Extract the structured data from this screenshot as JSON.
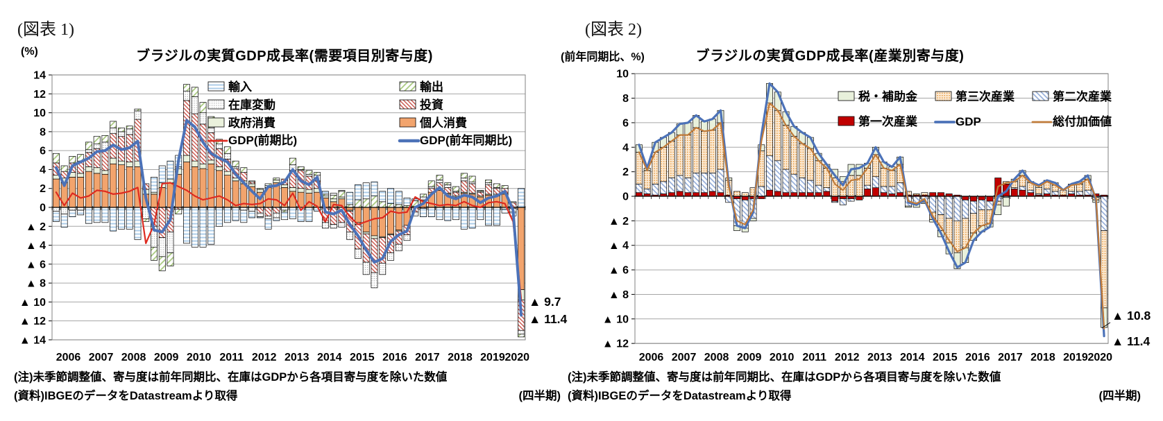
{
  "page": {
    "background": "#FFFFFF"
  },
  "panels": [
    {
      "fig_label": "(図表 1)",
      "unit_label": "(%)",
      "title": "ブラジルの実質GDP成長率(需要項目別寄与度)",
      "note1": "(注)未季節調整値、寄与度は前年同期比、在庫はGDPから各項目寄与度を除いた数値",
      "note2": "(資料)IBGEのデータをDatastreamより取得",
      "note2_right": "(四半期)"
    },
    {
      "fig_label": "(図表 2)",
      "unit_label": "(前年同期比、%)",
      "title": "ブラジルの実質GDP成長率(産業別寄与度)",
      "note1": "(注)未季節調整値、寄与度は前年同期比、在庫はGDPから各項目寄与度を除いた数値",
      "note2": "(資料)IBGEのデータをDatastreamより取得",
      "note2_right": "(四半期)"
    }
  ],
  "chart_data": [
    {
      "type": "bar",
      "subtype": "stacked-contribution-with-lines",
      "title": "ブラジルの実質GDP成長率(需要項目別寄与度)",
      "xlabel": "四半期",
      "ylabel": "%",
      "ylim": [
        -14,
        14
      ],
      "ytick_step": 2,
      "grid": true,
      "negative_tick_prefix": "▲ ",
      "years": [
        "2006",
        "2007",
        "2008",
        "2009",
        "2010",
        "2011",
        "2012",
        "2013",
        "2014",
        "2015",
        "2016",
        "2017",
        "2018",
        "2019",
        "2020"
      ],
      "n_quarters": 58,
      "x_range": "2006Q1-2020Q2",
      "patterns": {
        "hstripe": {
          "kind": "h",
          "fg": "#AECDE8",
          "bg": "#FFFFFF",
          "size": 5,
          "lw": 2
        },
        "dgreen": {
          "kind": "d",
          "fg": "#A8C97F",
          "bg": "#FFFFFF",
          "size": 6,
          "lw": 1.8,
          "angle": 45
        },
        "dots": {
          "kind": "dot",
          "fg": "#8C8C8C",
          "bg": "#FFFFFF",
          "size": 3.2,
          "r": 0.6
        },
        "rhatch": {
          "kind": "d",
          "fg": "#C5443B",
          "bg": "#FFFFFF",
          "size": 4,
          "lw": 1.3,
          "angle": -45
        }
      },
      "bar_series": [
        {
          "name": "個人消費",
          "fill": "solid",
          "color": "#F2A46D",
          "values": [
            3.0,
            2.6,
            3.2,
            3.2,
            3.8,
            3.6,
            3.5,
            4.6,
            4.5,
            4.3,
            4.3,
            1.4,
            1.4,
            2.1,
            2.6,
            3.5,
            4.8,
            4.3,
            4.1,
            4.6,
            3.9,
            3.4,
            2.8,
            2.5,
            2.2,
            1.6,
            2.1,
            2.6,
            2.1,
            1.7,
            1.6,
            1.5,
            1.6,
            1.0,
            0.6,
            0.9,
            -0.3,
            -1.6,
            -2.6,
            -3.0,
            -3.1,
            -2.8,
            -2.4,
            -1.9,
            0.1,
            0.7,
            1.6,
            1.8,
            1.4,
            1.1,
            1.5,
            1.4,
            1.1,
            1.3,
            1.2,
            1.4,
            -0.1,
            -8.7
          ]
        },
        {
          "name": "政府消費",
          "fill": "solid",
          "color": "#EAF1DC",
          "values": [
            0.4,
            0.5,
            0.5,
            0.4,
            0.5,
            0.6,
            0.4,
            0.6,
            0.4,
            0.5,
            0.6,
            0.5,
            0.2,
            0.5,
            0.4,
            0.6,
            0.7,
            0.6,
            0.5,
            0.4,
            0.4,
            0.4,
            0.3,
            0.3,
            0.3,
            0.3,
            0.2,
            0.3,
            0.3,
            0.4,
            0.4,
            0.4,
            0.4,
            0.2,
            0.3,
            0.2,
            -0.1,
            -0.2,
            -0.2,
            -0.3,
            -0.1,
            -0.1,
            -0.1,
            0.0,
            0.0,
            0.1,
            0.0,
            0.1,
            0.1,
            0.1,
            0.1,
            0.1,
            0.1,
            0.1,
            0.2,
            0.1,
            0.0,
            -1.1
          ]
        },
        {
          "name": "投資",
          "fill": "pattern",
          "pattern": "rhatch",
          "values": [
            1.3,
            0.7,
            1.0,
            1.3,
            1.5,
            2.0,
            2.2,
            2.6,
            2.6,
            2.9,
            4.4,
            0.6,
            -2.0,
            -3.2,
            -2.6,
            -0.2,
            5.8,
            5.0,
            4.2,
            2.9,
            1.9,
            1.3,
            1.0,
            0.9,
            0.2,
            -0.6,
            -0.9,
            -0.6,
            0.6,
            1.8,
            1.9,
            1.4,
            0.8,
            -1.6,
            -1.8,
            -1.6,
            -2.2,
            -2.6,
            -3.0,
            -3.6,
            -2.7,
            -1.9,
            -1.4,
            -1.0,
            -0.5,
            -0.1,
            0.4,
            0.7,
            0.6,
            0.4,
            1.2,
            1.0,
            0.4,
            1.0,
            0.6,
            0.5,
            0.5,
            -3.2
          ]
        },
        {
          "name": "在庫変動",
          "fill": "pattern",
          "pattern": "dots",
          "values": [
            -0.4,
            -0.7,
            -0.3,
            -0.3,
            0.3,
            0.5,
            0.8,
            0.6,
            0.5,
            0.6,
            0.9,
            -1.2,
            -2.2,
            -2.0,
            -2.2,
            0.2,
            1.0,
            1.8,
            1.2,
            0.5,
            0.5,
            0.6,
            0.2,
            -0.3,
            -0.4,
            -0.4,
            -0.3,
            -0.5,
            -0.3,
            0.6,
            0.1,
            0.2,
            0.6,
            -0.6,
            -0.4,
            -0.5,
            -0.8,
            -1.0,
            -1.3,
            -1.6,
            -1.2,
            -0.8,
            -0.7,
            -0.6,
            -0.4,
            0.3,
            0.2,
            0.3,
            0.3,
            0.1,
            0.3,
            0.2,
            0.1,
            0.2,
            0.1,
            -0.2,
            -0.4,
            -0.4
          ]
        },
        {
          "name": "輸出",
          "fill": "pattern",
          "pattern": "dgreen",
          "values": [
            1.0,
            0.6,
            0.7,
            0.7,
            0.8,
            0.8,
            0.7,
            0.7,
            0.4,
            0.3,
            0.2,
            -0.3,
            -1.4,
            -1.5,
            -1.4,
            -0.5,
            0.7,
            1.0,
            1.1,
            1.2,
            0.5,
            0.7,
            0.6,
            0.5,
            0.1,
            0.1,
            0.2,
            0.2,
            -0.2,
            0.7,
            0.3,
            0.4,
            0.3,
            0.2,
            0.4,
            0.6,
            0.3,
            0.8,
            0.9,
            1.2,
            0.6,
            0.4,
            0.3,
            0.2,
            0.6,
            0.3,
            0.6,
            0.5,
            0.2,
            0.5,
            0.5,
            0.6,
            0.1,
            0.3,
            0.4,
            0.3,
            0.1,
            -0.3
          ]
        },
        {
          "name": "輸入",
          "fill": "pattern",
          "pattern": "hstripe",
          "values": [
            -1.1,
            -1.4,
            -0.7,
            -0.5,
            -1.7,
            -1.6,
            -1.6,
            -2.5,
            -2.3,
            -2.3,
            -3.4,
            0.0,
            1.6,
            1.8,
            1.9,
            1.2,
            -3.8,
            -4.2,
            -4.2,
            -3.9,
            -2.0,
            -1.6,
            -1.4,
            -1.3,
            -0.7,
            -0.1,
            -1.1,
            -0.3,
            -0.8,
            -1.2,
            -1.5,
            -1.5,
            -0.4,
            0.3,
            0.2,
            0.1,
            1.3,
            1.6,
            1.7,
            1.5,
            1.1,
            1.6,
            1.4,
            0.8,
            0.2,
            -0.9,
            -1.0,
            -1.3,
            -1.4,
            -1.3,
            -2.3,
            -2.2,
            -1.3,
            -1.9,
            -1.9,
            -0.4,
            -0.4,
            2.0
          ]
        }
      ],
      "line_series": [
        {
          "name": "GDP(前期比)",
          "color": "#DE2B20",
          "width": 2.2,
          "values": [
            1.6,
            0.2,
            1.5,
            1.0,
            1.2,
            1.8,
            1.7,
            1.4,
            1.5,
            1.7,
            2.1,
            -3.8,
            -1.8,
            2.5,
            2.6,
            2.2,
            1.8,
            1.2,
            0.8,
            1.0,
            1.2,
            0.8,
            0.2,
            0.4,
            0.3,
            0.4,
            0.9,
            0.8,
            0.2,
            1.5,
            -0.3,
            0.6,
            0.1,
            -1.5,
            0.3,
            0.2,
            -1.0,
            -1.8,
            -1.5,
            -1.2,
            -1.1,
            -0.4,
            -0.6,
            -0.5,
            1.1,
            0.6,
            0.4,
            0.2,
            0.3,
            0.2,
            0.6,
            0.2,
            0.0,
            0.5,
            0.6,
            0.4,
            -1.5,
            -9.7
          ]
        },
        {
          "name": "GDP(前年同期比)",
          "color": "#4C72B8",
          "width": 4,
          "values": [
            4.2,
            2.3,
            4.4,
            4.8,
            5.2,
            5.9,
            6.0,
            6.6,
            6.1,
            6.3,
            7.0,
            1.0,
            -2.4,
            -2.6,
            -1.3,
            5.0,
            9.2,
            8.5,
            6.9,
            5.7,
            5.2,
            4.8,
            3.5,
            2.6,
            1.7,
            0.9,
            2.2,
            2.3,
            2.7,
            4.0,
            2.8,
            2.4,
            3.2,
            -0.5,
            -0.7,
            -0.3,
            -1.8,
            -3.0,
            -4.5,
            -5.8,
            -5.4,
            -3.6,
            -2.9,
            -2.5,
            0.0,
            0.4,
            1.4,
            2.1,
            1.2,
            0.9,
            1.3,
            1.1,
            0.5,
            1.0,
            1.2,
            1.7,
            -0.3,
            -11.4
          ]
        }
      ],
      "legend": {
        "position": "upper-right-inside",
        "rows": [
          [
            "輸入",
            "輸出"
          ],
          [
            "在庫変動",
            "投資"
          ],
          [
            "政府消費",
            "個人消費"
          ],
          [
            "GDP(前期比)",
            "GDP(前年同期比)"
          ]
        ]
      },
      "annotations": [
        {
          "label": "▲ 9.7",
          "value": -9.7
        },
        {
          "label": "▲ 11.4",
          "value": -11.4
        }
      ]
    },
    {
      "type": "bar",
      "subtype": "stacked-contribution-with-lines",
      "title": "ブラジルの実質GDP成長率(産業別寄与度)",
      "xlabel": "四半期",
      "ylabel": "前年同期比、%",
      "ylim": [
        -12,
        10
      ],
      "ytick_step": 2,
      "grid": true,
      "negative_tick_prefix": "▲ ",
      "years": [
        "2006",
        "2007",
        "2008",
        "2009",
        "2010",
        "2011",
        "2012",
        "2013",
        "2014",
        "2015",
        "2016",
        "2017",
        "2018",
        "2019",
        "2020"
      ],
      "n_quarters": 58,
      "x_range": "2006Q1-2020Q2",
      "patterns": {
        "dblue": {
          "kind": "d",
          "fg": "#8FA9D6",
          "bg": "#FFFFFF",
          "size": 5,
          "lw": 1.6,
          "angle": -45
        },
        "odots": {
          "kind": "dot",
          "fg": "#E08214",
          "bg": "#FBE9D3",
          "size": 3.4,
          "r": 0.75
        }
      },
      "bar_series": [
        {
          "name": "第一次産業",
          "fill": "solid",
          "color": "#C00000",
          "values": [
            0.3,
            0.2,
            0.1,
            0.2,
            0.3,
            0.4,
            0.3,
            0.3,
            0.3,
            0.4,
            0.3,
            0.1,
            -0.2,
            -0.3,
            -0.2,
            -0.2,
            0.5,
            0.4,
            0.3,
            0.3,
            0.3,
            0.3,
            0.3,
            0.4,
            -0.4,
            -0.2,
            -0.2,
            -0.3,
            0.6,
            0.7,
            0.3,
            0.2,
            0.3,
            0.1,
            0.1,
            0.1,
            0.3,
            0.3,
            0.2,
            0.1,
            -0.3,
            -0.4,
            -0.3,
            -0.4,
            1.5,
            1.0,
            0.6,
            0.5,
            0.3,
            0.1,
            0.2,
            0.1,
            0.1,
            0.2,
            0.1,
            0.1,
            0.2,
            0.1
          ]
        },
        {
          "name": "第二次産業",
          "fill": "pattern",
          "pattern": "dblue",
          "values": [
            0.7,
            0.4,
            0.9,
            1.0,
            1.2,
            1.3,
            1.2,
            1.6,
            1.6,
            1.5,
            1.9,
            -0.5,
            -2.2,
            -2.3,
            -1.6,
            0.8,
            2.8,
            2.5,
            1.9,
            1.5,
            1.2,
            1.0,
            0.6,
            0.3,
            -0.1,
            -0.5,
            -0.2,
            0.0,
            0.3,
            0.9,
            0.5,
            0.6,
            0.8,
            -0.8,
            -0.6,
            -0.5,
            -1.3,
            -1.5,
            -1.8,
            -2.0,
            -1.5,
            -1.0,
            -0.8,
            -0.7,
            -0.4,
            -0.1,
            0.1,
            0.3,
            0.2,
            0.1,
            0.4,
            0.3,
            0.0,
            0.2,
            0.3,
            0.4,
            -0.1,
            -2.8
          ]
        },
        {
          "name": "第三次産業",
          "fill": "pattern",
          "pattern": "odots",
          "values": [
            2.6,
            1.5,
            2.6,
            2.8,
            3.0,
            3.3,
            3.5,
            3.7,
            3.4,
            3.5,
            3.8,
            1.2,
            0.4,
            0.3,
            0.7,
            2.9,
            4.3,
            4.1,
            3.6,
            3.1,
            2.8,
            2.6,
            2.0,
            1.6,
            1.5,
            1.2,
            1.7,
            1.7,
            1.4,
            1.8,
            1.5,
            1.3,
            1.5,
            0.3,
            0.1,
            0.2,
            -0.6,
            -1.3,
            -2.0,
            -2.6,
            -2.4,
            -1.6,
            -1.3,
            -1.1,
            -0.3,
            0.2,
            0.5,
            0.9,
            0.6,
            0.5,
            0.6,
            0.5,
            0.4,
            0.5,
            0.6,
            0.9,
            -0.2,
            -6.3
          ]
        },
        {
          "name": "税・補助金",
          "fill": "solid",
          "color": "#E8F0DB",
          "values": [
            0.6,
            0.2,
            0.8,
            0.8,
            0.7,
            0.9,
            1.0,
            1.0,
            0.8,
            0.9,
            1.0,
            0.2,
            -0.4,
            -0.3,
            -0.2,
            0.5,
            1.6,
            1.5,
            1.1,
            0.8,
            0.9,
            0.9,
            0.6,
            0.3,
            0.7,
            0.4,
            0.9,
            0.9,
            0.4,
            0.6,
            0.5,
            0.3,
            0.6,
            -0.1,
            -0.3,
            -0.1,
            -0.2,
            -0.5,
            -0.9,
            -1.3,
            -1.2,
            -0.6,
            -0.5,
            -0.3,
            -0.8,
            -0.7,
            0.2,
            0.4,
            0.1,
            0.2,
            0.1,
            0.2,
            0.0,
            0.1,
            0.2,
            0.3,
            -0.2,
            -1.6
          ]
        }
      ],
      "line_series": [
        {
          "name": "GDP",
          "color": "#4C72B8",
          "width": 3.2,
          "values": [
            4.2,
            2.3,
            4.4,
            4.8,
            5.2,
            5.9,
            6.0,
            6.6,
            6.1,
            6.3,
            7.0,
            1.0,
            -2.4,
            -2.6,
            -1.3,
            5.0,
            9.2,
            8.5,
            6.9,
            5.7,
            5.2,
            4.8,
            3.5,
            2.6,
            1.7,
            0.9,
            2.2,
            2.3,
            2.7,
            4.0,
            2.8,
            2.4,
            3.2,
            -0.5,
            -0.7,
            -0.3,
            -1.8,
            -3.0,
            -4.5,
            -5.8,
            -5.4,
            -3.6,
            -2.9,
            -2.5,
            0.0,
            0.4,
            1.4,
            2.1,
            1.2,
            0.9,
            1.3,
            1.1,
            0.5,
            1.0,
            1.2,
            1.7,
            -0.3,
            -11.4
          ]
        },
        {
          "name": "総付加価値",
          "color": "#C07B3A",
          "width": 2.2,
          "values": [
            3.6,
            2.1,
            3.6,
            4.0,
            4.5,
            5.0,
            5.0,
            5.6,
            5.3,
            5.4,
            6.0,
            0.8,
            -2.0,
            -2.3,
            -1.1,
            4.5,
            7.6,
            7.0,
            5.8,
            4.9,
            4.3,
            3.9,
            2.9,
            2.3,
            1.0,
            0.5,
            1.3,
            1.4,
            2.3,
            3.4,
            2.3,
            2.1,
            2.6,
            -0.4,
            -0.6,
            -0.2,
            -1.6,
            -2.5,
            -3.6,
            -4.5,
            -4.2,
            -3.0,
            -2.4,
            -2.2,
            0.8,
            1.1,
            1.2,
            1.7,
            1.1,
            0.8,
            1.2,
            0.9,
            0.5,
            0.9,
            1.0,
            1.4,
            -0.1,
            -10.8
          ]
        }
      ],
      "legend": {
        "position": "upper-right-inside",
        "rows": [
          [
            "税・補助金",
            "第三次産業",
            "第二次産業"
          ],
          [
            "第一次産業",
            "GDP",
            "総付加価値"
          ]
        ]
      },
      "annotations": [
        {
          "label": "▲ 10.8",
          "value": -10.8
        },
        {
          "label": "▲ 11.4",
          "value": -11.4
        }
      ]
    }
  ]
}
